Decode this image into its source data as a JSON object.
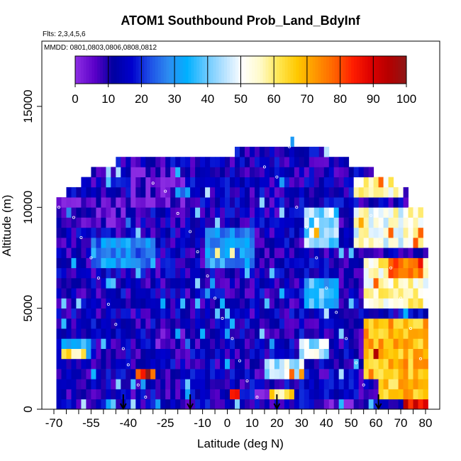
{
  "chart_data": {
    "type": "heatmap",
    "title": "ATOM1 Southbound Prob_Land_BdyInf",
    "annotations": [
      "Flts: 2,3,4,5,6",
      "MMDD: 0801,0803,0806,0808,0812"
    ],
    "xlabel": "Latitude (deg N)",
    "ylabel": "Altitude (m)",
    "xlim": [
      -70,
      84
    ],
    "ylim": [
      0,
      17500
    ],
    "x_ticks": [
      -70,
      -65,
      -60,
      -55,
      -50,
      -45,
      -40,
      -35,
      -30,
      -25,
      -20,
      -15,
      -10,
      -5,
      0,
      5,
      10,
      15,
      20,
      25,
      30,
      35,
      40,
      45,
      50,
      55,
      60,
      65,
      70,
      75,
      80
    ],
    "x_tick_labels": [
      "-70",
      "-55",
      "-40",
      "-25",
      "-10",
      "0",
      "10",
      "20",
      "30",
      "40",
      "50",
      "60",
      "70",
      "80"
    ],
    "x_tick_label_values": [
      -70,
      -55,
      -40,
      -25,
      -10,
      0,
      10,
      20,
      30,
      40,
      50,
      60,
      70,
      80
    ],
    "y_ticks": [
      0,
      5000,
      10000,
      15000
    ],
    "y_tick_labels": [
      "0",
      "5000",
      "10000",
      "15000"
    ],
    "colorbar": {
      "range": [
        0,
        100
      ],
      "tick_values": [
        0,
        10,
        20,
        30,
        40,
        50,
        60,
        70,
        80,
        90,
        100
      ],
      "tick_labels": [
        "0",
        "10",
        "20",
        "30",
        "40",
        "50",
        "60",
        "70",
        "80",
        "90",
        "100"
      ],
      "colors": [
        "#8a2be2",
        "#5a00c8",
        "#0000a0",
        "#0000cd",
        "#1e50e6",
        "#2d8cf0",
        "#00b0ff",
        "#64c8ff",
        "#b4e1ff",
        "#ffffff",
        "#fffac8",
        "#ffe650",
        "#ffc800",
        "#ff9600",
        "#ff6400",
        "#ff1e00",
        "#dc0000",
        "#b40000",
        "#8b1a1a"
      ]
    },
    "profile_markers_lat": [
      -42,
      -15,
      20,
      61
    ],
    "lat_bin": 2,
    "alt_bin": 500,
    "grid": false,
    "legend": "colorbar-top-inside",
    "regions": [
      {
        "lat": [
          -70,
          84
        ],
        "alt": [
          0,
          13500
        ],
        "value": 12
      },
      {
        "lat": [
          -70,
          -40
        ],
        "alt": [
          9000,
          10500
        ],
        "value": 5
      },
      {
        "lat": [
          -40,
          -18
        ],
        "alt": [
          10000,
          12000
        ],
        "value": 4
      },
      {
        "lat": [
          -55,
          -30
        ],
        "alt": [
          7000,
          8500
        ],
        "value": 28
      },
      {
        "lat": [
          -68,
          -55
        ],
        "alt": [
          2500,
          3500
        ],
        "value": 35
      },
      {
        "lat": [
          -68,
          -58
        ],
        "alt": [
          2500,
          3000
        ],
        "value": 58
      },
      {
        "lat": [
          -38,
          -30
        ],
        "alt": [
          1500,
          2000
        ],
        "value": 72
      },
      {
        "lat": [
          -35,
          -32
        ],
        "alt": [
          1500,
          2000
        ],
        "value": 88
      },
      {
        "lat": [
          -30,
          -10
        ],
        "alt": [
          3000,
          4000
        ],
        "value": 5
      },
      {
        "lat": [
          -10,
          10
        ],
        "alt": [
          7000,
          9000
        ],
        "value": 30
      },
      {
        "lat": [
          10,
          20
        ],
        "alt": [
          500,
          1000
        ],
        "value": 3
      },
      {
        "lat": [
          0,
          4
        ],
        "alt": [
          500,
          1000
        ],
        "value": 88
      },
      {
        "lat": [
          16,
          26
        ],
        "alt": [
          500,
          1000
        ],
        "value": 60
      },
      {
        "lat": [
          15,
          30
        ],
        "alt": [
          1500,
          2500
        ],
        "value": 45
      },
      {
        "lat": [
          28,
          40
        ],
        "alt": [
          2500,
          3500
        ],
        "value": 45
      },
      {
        "lat": [
          30,
          45
        ],
        "alt": [
          5000,
          6500
        ],
        "value": 35
      },
      {
        "lat": [
          30,
          45
        ],
        "alt": [
          8000,
          10000
        ],
        "value": 42
      },
      {
        "lat": [
          35,
          50
        ],
        "alt": [
          0,
          500
        ],
        "value": 3
      },
      {
        "lat": [
          50,
          80
        ],
        "alt": [
          8000,
          10000
        ],
        "value": 52
      },
      {
        "lat": [
          50,
          70
        ],
        "alt": [
          10500,
          11500
        ],
        "value": 55
      },
      {
        "lat": [
          55,
          80
        ],
        "alt": [
          5000,
          7500
        ],
        "value": 55
      },
      {
        "lat": [
          65,
          78
        ],
        "alt": [
          6500,
          7500
        ],
        "value": 78
      },
      {
        "lat": [
          55,
          82
        ],
        "alt": [
          1500,
          4500
        ],
        "value": 68
      },
      {
        "lat": [
          60,
          82
        ],
        "alt": [
          500,
          1500
        ],
        "value": 66
      },
      {
        "lat": [
          70,
          82
        ],
        "alt": [
          0,
          500
        ],
        "value": 86
      }
    ],
    "tracers": [
      {
        "lat": -68,
        "alt": 10000
      },
      {
        "lat": -62,
        "alt": 9500
      },
      {
        "lat": -59,
        "alt": 8500
      },
      {
        "lat": -55,
        "alt": 7500
      },
      {
        "lat": -52,
        "alt": 6500
      },
      {
        "lat": -48,
        "alt": 5200
      },
      {
        "lat": -45,
        "alt": 4200
      },
      {
        "lat": -42,
        "alt": 3000
      },
      {
        "lat": -40,
        "alt": 2200
      },
      {
        "lat": -36,
        "alt": 1200
      },
      {
        "lat": -33,
        "alt": 600
      },
      {
        "lat": -30,
        "alt": 11200
      },
      {
        "lat": -25,
        "alt": 10800
      },
      {
        "lat": -20,
        "alt": 9700
      },
      {
        "lat": -15,
        "alt": 8800
      },
      {
        "lat": -12,
        "alt": 7800
      },
      {
        "lat": -8,
        "alt": 6600
      },
      {
        "lat": -5,
        "alt": 5500
      },
      {
        "lat": -2,
        "alt": 4500
      },
      {
        "lat": 2,
        "alt": 3500
      },
      {
        "lat": 5,
        "alt": 2400
      },
      {
        "lat": 8,
        "alt": 1400
      },
      {
        "lat": 12,
        "alt": 600
      },
      {
        "lat": 15,
        "alt": 12000
      },
      {
        "lat": 20,
        "alt": 11500
      },
      {
        "lat": 25,
        "alt": 13000
      },
      {
        "lat": 28,
        "alt": 10000
      },
      {
        "lat": 32,
        "alt": 9000
      },
      {
        "lat": 36,
        "alt": 7500
      },
      {
        "lat": 40,
        "alt": 6000
      },
      {
        "lat": 44,
        "alt": 4800
      },
      {
        "lat": 48,
        "alt": 3500
      },
      {
        "lat": 52,
        "alt": 2300
      },
      {
        "lat": 55,
        "alt": 1200
      },
      {
        "lat": 58,
        "alt": 9600
      },
      {
        "lat": 62,
        "alt": 8300
      },
      {
        "lat": 66,
        "alt": 7000
      },
      {
        "lat": 70,
        "alt": 5500
      },
      {
        "lat": 74,
        "alt": 4000
      },
      {
        "lat": 78,
        "alt": 2500
      }
    ]
  }
}
